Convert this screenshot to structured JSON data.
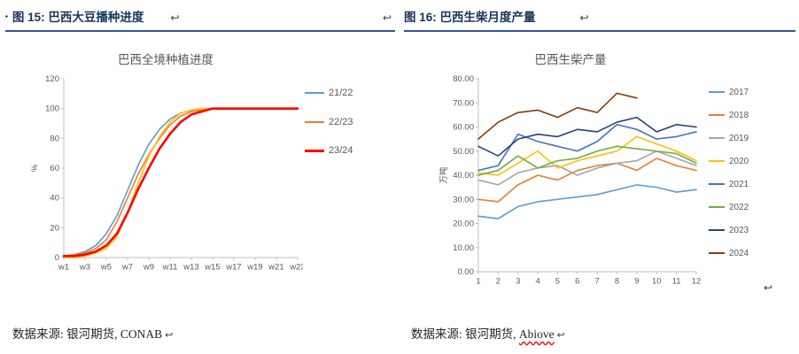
{
  "colors": {
    "header_text": "#17365D",
    "header_underline": "#2E5597",
    "axis_line": "#BFBFBF",
    "tick_text": "#595959",
    "chart_title_text": "#595959",
    "source_text": "#262626",
    "misspell_underline": "#FF0000"
  },
  "left_panel": {
    "bullet": "▪",
    "header": "图 15:  巴西大豆播种进度",
    "return_mark": "↩",
    "return_mark_2": "↩",
    "source": "数据来源: 银河期货, CONAB",
    "source_return_mark": "↩"
  },
  "right_panel": {
    "header": "图 16:  巴西生柴月度产量",
    "return_mark": "↩",
    "source_prefix": "数据来源: 银河期货, ",
    "source_word": "Abiove",
    "source_return_mark": "↩",
    "chart_return_mark": "↩"
  },
  "chart_data": [
    {
      "type": "line",
      "title": "巴西全境种植进度",
      "xlabel": "",
      "ylabel": "%",
      "ylim": [
        0,
        120
      ],
      "yticks": [
        0,
        20,
        40,
        60,
        80,
        100,
        120
      ],
      "ytick_labels": [
        "0",
        "20",
        "40",
        "60",
        "80",
        "100",
        "120"
      ],
      "categories": [
        "w1",
        "w2",
        "w3",
        "w4",
        "w5",
        "w6",
        "w7",
        "w8",
        "w9",
        "w10",
        "w11",
        "w12",
        "w13",
        "w14",
        "w15",
        "w16",
        "w17",
        "w18",
        "w19",
        "w20",
        "w21",
        "w22",
        "w23"
      ],
      "xtick_every": 2,
      "grid": false,
      "legend_position": "right",
      "series": [
        {
          "name": "21/22",
          "color": "#5B9BD5",
          "width": 1.6,
          "values": [
            1,
            2,
            4,
            8,
            16,
            28,
            45,
            62,
            76,
            86,
            93,
            97,
            99,
            100,
            100,
            100,
            100,
            100,
            100,
            100,
            100,
            100,
            100
          ]
        },
        {
          "name": "22/23",
          "color": "#ED7D31",
          "width": 1.6,
          "values": [
            1,
            2,
            3,
            6,
            12,
            24,
            40,
            56,
            69,
            80,
            89,
            95,
            98,
            99,
            100,
            100,
            100,
            100,
            100,
            100,
            100,
            100,
            100
          ]
        },
        {
          "name": "",
          "legend": false,
          "color": "#FFC000",
          "width": 1.6,
          "values": [
            0,
            0,
            1,
            3,
            6,
            14,
            30,
            50,
            68,
            81,
            91,
            97,
            99,
            100,
            100,
            100,
            100,
            100,
            100,
            100,
            100,
            100,
            100
          ]
        },
        {
          "name": "23/24",
          "color": "#FF0000",
          "width": 2.6,
          "values": [
            1,
            1,
            2,
            4,
            8,
            16,
            30,
            46,
            60,
            73,
            83,
            91,
            96,
            98,
            100,
            100,
            100,
            100,
            100,
            100,
            100,
            100,
            100
          ]
        }
      ]
    },
    {
      "type": "line",
      "title": "巴西生柴产量",
      "xlabel": "",
      "ylabel": "万吨",
      "ylim": [
        0,
        80
      ],
      "yticks": [
        0,
        10,
        20,
        30,
        40,
        50,
        60,
        70,
        80
      ],
      "ytick_labels": [
        "0.00",
        "10.00",
        "20.00",
        "30.00",
        "40.00",
        "50.00",
        "60.00",
        "70.00",
        "80.00"
      ],
      "categories": [
        "1",
        "2",
        "3",
        "4",
        "5",
        "6",
        "7",
        "8",
        "9",
        "10",
        "11",
        "12"
      ],
      "xtick_every": 1,
      "grid": false,
      "legend_position": "right",
      "series": [
        {
          "name": "2017",
          "color": "#5B9BD5",
          "width": 1.6,
          "values": [
            23,
            22,
            27,
            29,
            30,
            31,
            32,
            34,
            36,
            35,
            33,
            34
          ]
        },
        {
          "name": "2018",
          "color": "#ED7D31",
          "width": 1.6,
          "values": [
            30,
            29,
            36,
            40,
            38,
            42,
            44,
            45,
            42,
            47,
            44,
            42
          ]
        },
        {
          "name": "2019",
          "color": "#A5A5A5",
          "width": 1.6,
          "values": [
            38,
            36,
            41,
            43,
            44,
            40,
            43,
            45,
            46,
            50,
            47,
            44
          ]
        },
        {
          "name": "2020",
          "color": "#FFC000",
          "width": 1.6,
          "values": [
            41,
            40,
            45,
            50,
            43,
            46,
            48,
            50,
            56,
            53,
            50,
            46
          ]
        },
        {
          "name": "2021",
          "color": "#4472C4",
          "width": 1.6,
          "values": [
            42,
            44,
            57,
            54,
            52,
            50,
            54,
            61,
            59,
            55,
            56,
            58
          ]
        },
        {
          "name": "2022",
          "color": "#70AD47",
          "width": 1.6,
          "values": [
            40,
            42,
            48,
            43,
            46,
            47,
            50,
            52,
            51,
            50,
            49,
            45
          ]
        },
        {
          "name": "2023",
          "color": "#264478",
          "width": 1.6,
          "values": [
            52,
            48,
            55,
            57,
            56,
            59,
            58,
            62,
            64,
            58,
            61,
            60
          ]
        },
        {
          "name": "2024",
          "color": "#843C0C",
          "width": 1.6,
          "values": [
            55,
            62,
            66,
            67,
            64,
            68,
            66,
            74,
            72,
            null,
            null,
            null
          ]
        }
      ]
    }
  ]
}
